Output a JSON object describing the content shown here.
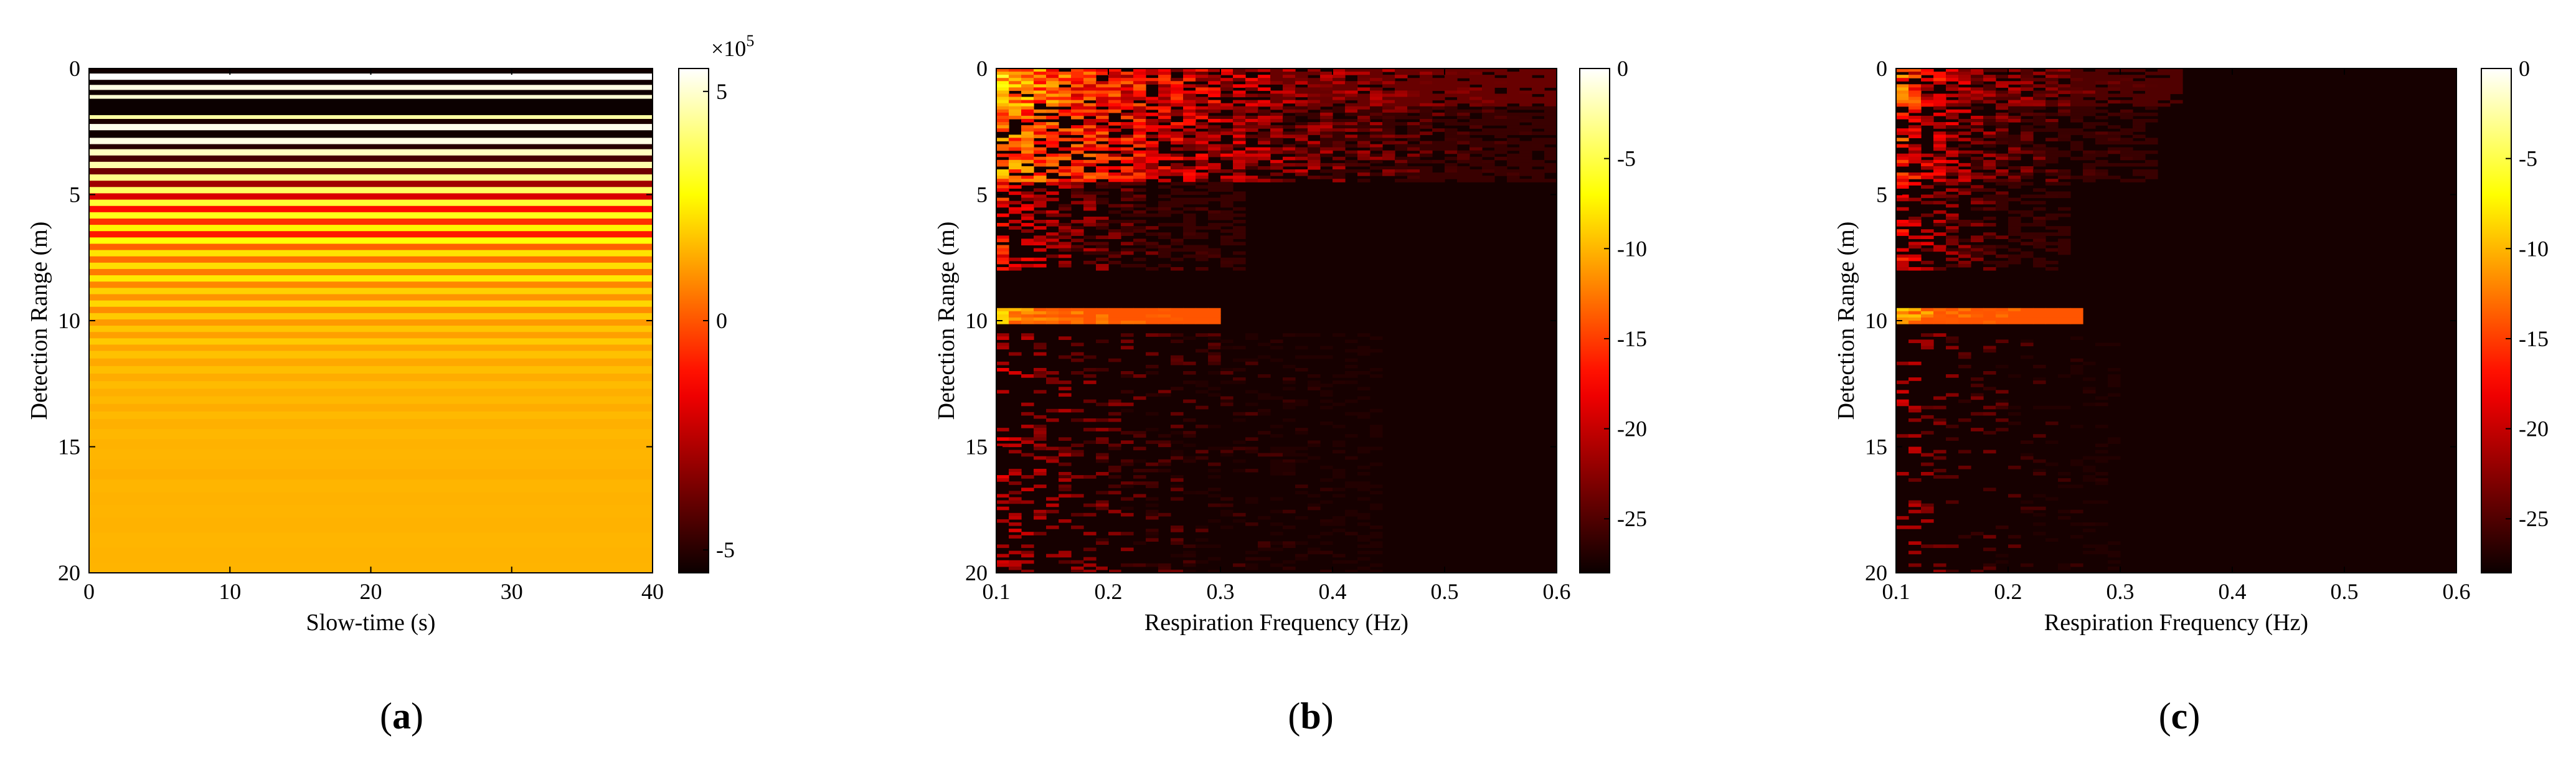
{
  "figure": {
    "panels": [
      "a",
      "b",
      "c"
    ]
  },
  "chart_data": [
    {
      "type": "heatmap",
      "caption": {
        "open": "(",
        "letter": "a",
        "close": ")"
      },
      "xlabel": "Slow-time (s)",
      "ylabel": "Detection Range (m)",
      "xlim": [
        0,
        40
      ],
      "ylim": [
        20,
        0
      ],
      "y_reversed": true,
      "xticks": [
        0,
        10,
        20,
        30,
        40
      ],
      "yticks": [
        0,
        5,
        10,
        15,
        20
      ],
      "colorbar": {
        "min": -550000,
        "max": 550000,
        "ticks": [
          {
            "value": 500000,
            "label": "5"
          },
          {
            "value": 0,
            "label": "0"
          },
          {
            "value": -500000,
            "label": "-5"
          }
        ],
        "exponent_base": "×10",
        "exponent_power": "5",
        "colormap": "hot"
      },
      "rows": [
        {
          "y0": 0.0,
          "y1": 0.2,
          "v": -540000
        },
        {
          "y0": 0.2,
          "y1": 0.45,
          "v": 550000
        },
        {
          "y0": 0.45,
          "y1": 0.65,
          "v": -540000
        },
        {
          "y0": 0.65,
          "y1": 0.85,
          "v": 520000
        },
        {
          "y0": 0.85,
          "y1": 1.05,
          "v": -540000
        },
        {
          "y0": 1.05,
          "y1": 1.2,
          "v": 500000
        },
        {
          "y0": 1.2,
          "y1": 1.85,
          "v": -550000
        },
        {
          "y0": 1.85,
          "y1": 2.0,
          "v": 450000
        },
        {
          "y0": 2.0,
          "y1": 2.2,
          "v": -520000
        },
        {
          "y0": 2.2,
          "y1": 2.45,
          "v": 530000
        },
        {
          "y0": 2.45,
          "y1": 2.75,
          "v": -540000
        },
        {
          "y0": 2.75,
          "y1": 3.0,
          "v": 520000
        },
        {
          "y0": 3.0,
          "y1": 3.2,
          "v": -500000
        },
        {
          "y0": 3.2,
          "y1": 3.45,
          "v": 480000
        },
        {
          "y0": 3.45,
          "y1": 3.7,
          "v": -450000
        },
        {
          "y0": 3.7,
          "y1": 3.95,
          "v": 460000
        },
        {
          "y0": 3.95,
          "y1": 4.2,
          "v": -380000
        },
        {
          "y0": 4.2,
          "y1": 4.45,
          "v": 420000
        },
        {
          "y0": 4.45,
          "y1": 4.7,
          "v": -300000
        },
        {
          "y0": 4.7,
          "y1": 4.95,
          "v": 380000
        },
        {
          "y0": 4.95,
          "y1": 5.2,
          "v": -200000
        },
        {
          "y0": 5.2,
          "y1": 5.45,
          "v": 330000
        },
        {
          "y0": 5.45,
          "y1": 5.7,
          "v": -120000
        },
        {
          "y0": 5.7,
          "y1": 5.95,
          "v": 300000
        },
        {
          "y0": 5.95,
          "y1": 6.2,
          "v": -60000
        },
        {
          "y0": 6.2,
          "y1": 6.45,
          "v": 260000
        },
        {
          "y0": 6.45,
          "y1": 6.7,
          "v": -100000
        },
        {
          "y0": 6.7,
          "y1": 6.95,
          "v": 280000
        },
        {
          "y0": 6.95,
          "y1": 7.2,
          "v": 20000
        },
        {
          "y0": 7.2,
          "y1": 7.45,
          "v": 230000
        },
        {
          "y0": 7.45,
          "y1": 7.7,
          "v": 40000
        },
        {
          "y0": 7.7,
          "y1": 7.95,
          "v": 220000
        },
        {
          "y0": 7.95,
          "y1": 8.2,
          "v": 60000
        },
        {
          "y0": 8.2,
          "y1": 8.45,
          "v": 240000
        },
        {
          "y0": 8.45,
          "y1": 8.7,
          "v": 80000
        },
        {
          "y0": 8.7,
          "y1": 8.95,
          "v": 200000
        },
        {
          "y0": 8.95,
          "y1": 9.2,
          "v": 100000
        },
        {
          "y0": 9.2,
          "y1": 9.45,
          "v": 210000
        },
        {
          "y0": 9.45,
          "y1": 9.7,
          "v": 90000
        },
        {
          "y0": 9.7,
          "y1": 9.95,
          "v": 190000
        },
        {
          "y0": 9.95,
          "y1": 10.2,
          "v": 110000
        },
        {
          "y0": 10.2,
          "y1": 10.45,
          "v": 180000
        },
        {
          "y0": 10.45,
          "y1": 10.7,
          "v": 120000
        },
        {
          "y0": 10.7,
          "y1": 10.95,
          "v": 190000
        },
        {
          "y0": 10.95,
          "y1": 11.2,
          "v": 130000
        },
        {
          "y0": 11.2,
          "y1": 11.5,
          "v": 175000
        },
        {
          "y0": 11.5,
          "y1": 11.8,
          "v": 135000
        },
        {
          "y0": 11.8,
          "y1": 12.1,
          "v": 170000
        },
        {
          "y0": 12.1,
          "y1": 12.4,
          "v": 140000
        },
        {
          "y0": 12.4,
          "y1": 12.7,
          "v": 165000
        },
        {
          "y0": 12.7,
          "y1": 13.0,
          "v": 145000
        },
        {
          "y0": 13.0,
          "y1": 13.3,
          "v": 160000
        },
        {
          "y0": 13.3,
          "y1": 13.6,
          "v": 140000
        },
        {
          "y0": 13.6,
          "y1": 13.9,
          "v": 162000
        },
        {
          "y0": 13.9,
          "y1": 14.3,
          "v": 148000
        },
        {
          "y0": 14.3,
          "y1": 14.7,
          "v": 158000
        },
        {
          "y0": 14.7,
          "y1": 15.1,
          "v": 150000
        },
        {
          "y0": 15.1,
          "y1": 15.5,
          "v": 156000
        },
        {
          "y0": 15.5,
          "y1": 15.9,
          "v": 152000
        },
        {
          "y0": 15.9,
          "y1": 16.3,
          "v": 145000
        },
        {
          "y0": 16.3,
          "y1": 16.8,
          "v": 155000
        },
        {
          "y0": 16.8,
          "y1": 17.3,
          "v": 150000
        },
        {
          "y0": 17.3,
          "y1": 17.8,
          "v": 154000
        },
        {
          "y0": 17.8,
          "y1": 18.4,
          "v": 151000
        },
        {
          "y0": 18.4,
          "y1": 19.0,
          "v": 155000
        },
        {
          "y0": 19.0,
          "y1": 19.6,
          "v": 152000
        },
        {
          "y0": 19.6,
          "y1": 20.0,
          "v": 154000
        }
      ]
    },
    {
      "type": "heatmap",
      "caption": {
        "open": "(",
        "letter": "b",
        "close": ")"
      },
      "xlabel": "Respiration Frequency (Hz)",
      "ylabel": "Detection Range (m)",
      "xlim": [
        0.1,
        0.6
      ],
      "ylim": [
        20,
        0
      ],
      "y_reversed": true,
      "xticks": [
        0.1,
        0.2,
        0.3,
        0.4,
        0.5,
        0.6
      ],
      "yticks": [
        0,
        5,
        10,
        15,
        20
      ],
      "colorbar": {
        "min": -28,
        "max": 0,
        "ticks": [
          {
            "value": 0,
            "label": "0"
          },
          {
            "value": -5,
            "label": "-5"
          },
          {
            "value": -10,
            "label": "-10"
          },
          {
            "value": -15,
            "label": "-15"
          },
          {
            "value": -20,
            "label": "-20"
          },
          {
            "value": -25,
            "label": "-25"
          }
        ],
        "colormap": "hot"
      },
      "grid_rows": 160,
      "grid_cols": 45,
      "background": -27.5,
      "blobs": [
        {
          "y0": 0,
          "y1": 1.5,
          "x0": 0.1,
          "x1": 0.6,
          "peak": -4,
          "floor": -24,
          "decay": 0.55,
          "density": 0.85
        },
        {
          "y0": 1.5,
          "y1": 4.5,
          "x0": 0.1,
          "x1": 0.6,
          "peak": -8,
          "floor": -26,
          "decay": 0.75,
          "density": 0.7
        },
        {
          "y0": 4.5,
          "y1": 8,
          "x0": 0.1,
          "x1": 0.32,
          "peak": -12,
          "floor": -26,
          "decay": 0.5,
          "density": 0.55
        },
        {
          "y0": 9.5,
          "y1": 10.1,
          "x0": 0.1,
          "x1": 0.3,
          "peak": -3,
          "floor": -14,
          "decay": 0.25,
          "density": 1.0
        },
        {
          "y0": 10.5,
          "y1": 20,
          "x0": 0.1,
          "x1": 0.45,
          "peak": -17,
          "floor": -27,
          "decay": 0.55,
          "density": 0.25
        }
      ],
      "seed": 7
    },
    {
      "type": "heatmap",
      "caption": {
        "open": "(",
        "letter": "c",
        "close": ")"
      },
      "xlabel": "Respiration Frequency (Hz)",
      "ylabel": "Detection Range (m)",
      "xlim": [
        0.1,
        0.6
      ],
      "ylim": [
        20,
        0
      ],
      "y_reversed": true,
      "xticks": [
        0.1,
        0.2,
        0.3,
        0.4,
        0.5,
        0.6
      ],
      "yticks": [
        0,
        5,
        10,
        15,
        20
      ],
      "colorbar": {
        "min": -28,
        "max": 0,
        "ticks": [
          {
            "value": 0,
            "label": "0"
          },
          {
            "value": -5,
            "label": "-5"
          },
          {
            "value": -10,
            "label": "-10"
          },
          {
            "value": -15,
            "label": "-15"
          },
          {
            "value": -20,
            "label": "-20"
          },
          {
            "value": -25,
            "label": "-25"
          }
        ],
        "colormap": "hot"
      },
      "grid_rows": 160,
      "grid_cols": 45,
      "background": -27.5,
      "blobs": [
        {
          "y0": 0,
          "y1": 1.5,
          "x0": 0.1,
          "x1": 0.35,
          "peak": -5,
          "floor": -25,
          "decay": 0.35,
          "density": 0.8
        },
        {
          "y0": 1.5,
          "y1": 4.5,
          "x0": 0.1,
          "x1": 0.33,
          "peak": -8,
          "floor": -26,
          "decay": 0.4,
          "density": 0.6
        },
        {
          "y0": 4.5,
          "y1": 8,
          "x0": 0.1,
          "x1": 0.25,
          "peak": -12,
          "floor": -26,
          "decay": 0.45,
          "density": 0.5
        },
        {
          "y0": 9.5,
          "y1": 10.1,
          "x0": 0.1,
          "x1": 0.27,
          "peak": -3,
          "floor": -14,
          "decay": 0.25,
          "density": 1.0
        },
        {
          "y0": 10.5,
          "y1": 20,
          "x0": 0.1,
          "x1": 0.3,
          "peak": -18,
          "floor": -27,
          "decay": 0.6,
          "density": 0.15
        }
      ],
      "seed": 13
    }
  ]
}
